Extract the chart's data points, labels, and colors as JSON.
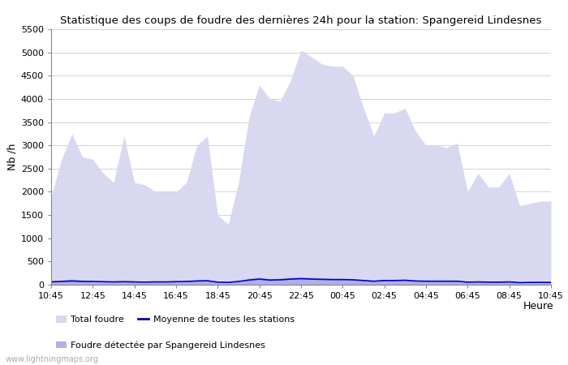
{
  "title": "Statistique des coups de foudre des dernières 24h pour la station: Spangereid Lindesnes",
  "xlabel": "Heure",
  "ylabel": "Nb /h",
  "xlim": [
    0,
    48
  ],
  "ylim": [
    0,
    5500
  ],
  "yticks": [
    0,
    500,
    1000,
    1500,
    2000,
    2500,
    3000,
    3500,
    4000,
    4500,
    5000,
    5500
  ],
  "xtick_labels": [
    "10:45",
    "12:45",
    "14:45",
    "16:45",
    "18:45",
    "20:45",
    "22:45",
    "00:45",
    "02:45",
    "04:45",
    "06:45",
    "08:45",
    "10:45"
  ],
  "xtick_positions": [
    0,
    4,
    8,
    12,
    16,
    20,
    24,
    28,
    32,
    36,
    40,
    44,
    48
  ],
  "bg_color": "#ffffff",
  "grid_color": "#cccccc",
  "fill_color_total": "#d8d8f0",
  "fill_color_station": "#b0b0e8",
  "line_color_moyenne": "#0000cc",
  "watermark": "www.lightningmaps.org",
  "total_foudre": [
    1900,
    2700,
    3250,
    2750,
    2700,
    2400,
    2200,
    3200,
    2200,
    2150,
    2000,
    2000,
    2000,
    2200,
    3000,
    3200,
    1500,
    1300,
    2200,
    3600,
    4300,
    4000,
    3950,
    4400,
    5050,
    4900,
    4750,
    4700,
    4700,
    4500,
    3800,
    3200,
    3700,
    3700,
    3800,
    3300,
    3000,
    3000,
    2950,
    3050,
    2000,
    2400,
    2100,
    2100,
    2400,
    1700,
    1750,
    1800,
    1800
  ],
  "station_foudre": [
    80,
    100,
    120,
    100,
    80,
    70,
    60,
    70,
    60,
    50,
    60,
    60,
    70,
    80,
    100,
    110,
    60,
    50,
    80,
    140,
    160,
    130,
    140,
    160,
    170,
    160,
    150,
    140,
    140,
    130,
    110,
    90,
    110,
    110,
    120,
    100,
    90,
    90,
    90,
    90,
    60,
    70,
    60,
    60,
    70,
    50,
    60,
    60,
    60
  ],
  "moyenne_stations": [
    60,
    70,
    80,
    70,
    70,
    65,
    60,
    65,
    60,
    55,
    60,
    60,
    65,
    70,
    80,
    85,
    55,
    50,
    70,
    100,
    120,
    100,
    105,
    120,
    130,
    120,
    115,
    110,
    110,
    105,
    90,
    75,
    90,
    90,
    95,
    80,
    75,
    75,
    75,
    75,
    55,
    60,
    55,
    55,
    60,
    45,
    50,
    50,
    50
  ],
  "legend_label_total": "Total foudre",
  "legend_label_moyenne": "Moyenne de toutes les stations",
  "legend_label_station": "Foudre détectée par Spangereid Lindesnes"
}
